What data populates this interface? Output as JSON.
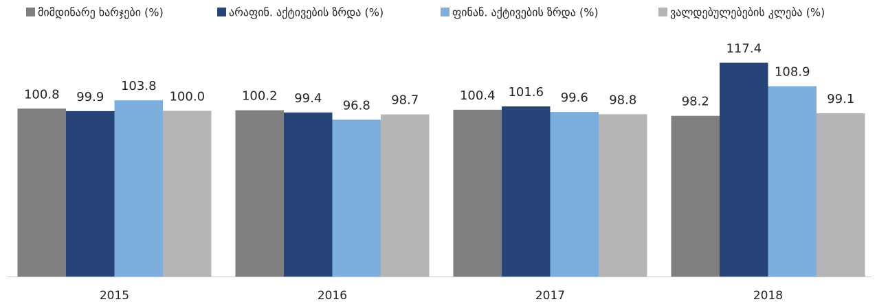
{
  "chart_data": {
    "type": "bar",
    "categories": [
      "2015",
      "2016",
      "2017",
      "2018"
    ],
    "series": [
      {
        "name": "მიმდინარე ხარჯები (%)",
        "color": "#7f7f7f",
        "values": [
          100.8,
          100.2,
          100.4,
          98.2
        ],
        "value_labels": [
          "100.8",
          "100.2",
          "100.4",
          "98.2"
        ]
      },
      {
        "name": "არაფინ. აქტივების ზრდა (%)",
        "color": "#264478",
        "values": [
          99.9,
          99.4,
          101.6,
          117.4
        ],
        "value_labels": [
          "99.9",
          "99.4",
          "101.6",
          "117.4"
        ]
      },
      {
        "name": "ფინან. აქტივების ზრდა (%)",
        "color": "#7cafde",
        "values": [
          103.8,
          96.8,
          99.6,
          108.9
        ],
        "value_labels": [
          "103.8",
          "96.8",
          "99.6",
          "108.9"
        ]
      },
      {
        "name": "ვალდებულებების კლება (%)",
        "color": "#b5b5b5",
        "values": [
          100.0,
          98.7,
          98.8,
          99.1
        ],
        "value_labels": [
          "100.0",
          "98.7",
          "98.8",
          "99.1"
        ]
      }
    ],
    "ylim": [
      40,
      120
    ],
    "legend": "top"
  }
}
